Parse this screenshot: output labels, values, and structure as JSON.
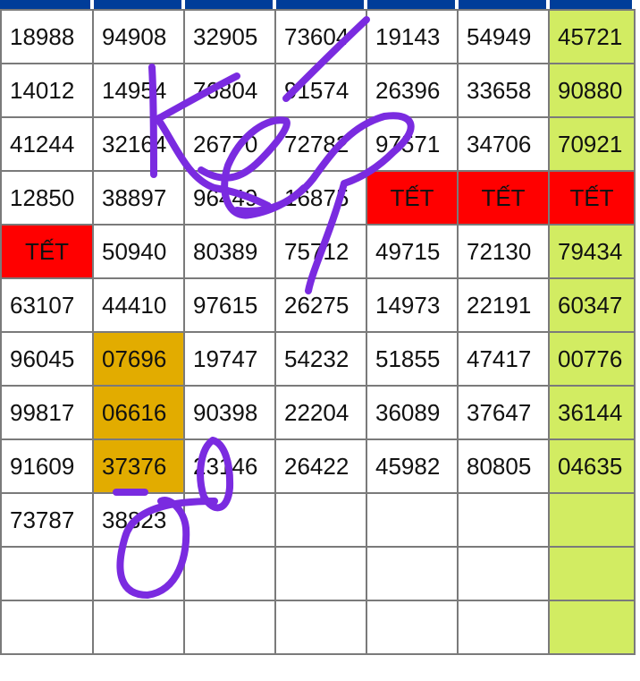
{
  "colors": {
    "header": "#003d99",
    "tet": "#ff0000",
    "highlight": "#e2ac00",
    "last_column": "#d2ec62",
    "ink": "#7a2be0"
  },
  "rows": [
    [
      "18988",
      "94908",
      "32905",
      "73604",
      "19143",
      "54949",
      "45721"
    ],
    [
      "14012",
      "14954",
      "76804",
      "91574",
      "26396",
      "33658",
      "90880"
    ],
    [
      "41244",
      "32164",
      "26770",
      "72782",
      "97571",
      "34706",
      "70921"
    ],
    [
      "12850",
      "38897",
      "96449",
      "16875",
      "TẾT",
      "TẾT",
      "TẾT"
    ],
    [
      "TẾT",
      "50940",
      "80389",
      "75712",
      "49715",
      "72130",
      "79434"
    ],
    [
      "63107",
      "44410",
      "97615",
      "26275",
      "14973",
      "22191",
      "60347"
    ],
    [
      "96045",
      "07696",
      "19747",
      "54232",
      "51855",
      "47417",
      "00776"
    ],
    [
      "99817",
      "06616",
      "90398",
      "22204",
      "36089",
      "37647",
      "36144"
    ],
    [
      "91609",
      "37376",
      "23146",
      "26422",
      "45982",
      "80805",
      "04635"
    ],
    [
      "73787",
      "38823",
      "",
      "",
      "",
      "",
      ""
    ],
    [
      "",
      "",
      "",
      "",
      "",
      "",
      ""
    ],
    [
      "",
      "",
      "",
      "",
      "",
      "",
      ""
    ]
  ],
  "highlighted_cells": [
    [
      6,
      1
    ],
    [
      7,
      1
    ],
    [
      8,
      1
    ]
  ],
  "handwriting": "Kép 8"
}
